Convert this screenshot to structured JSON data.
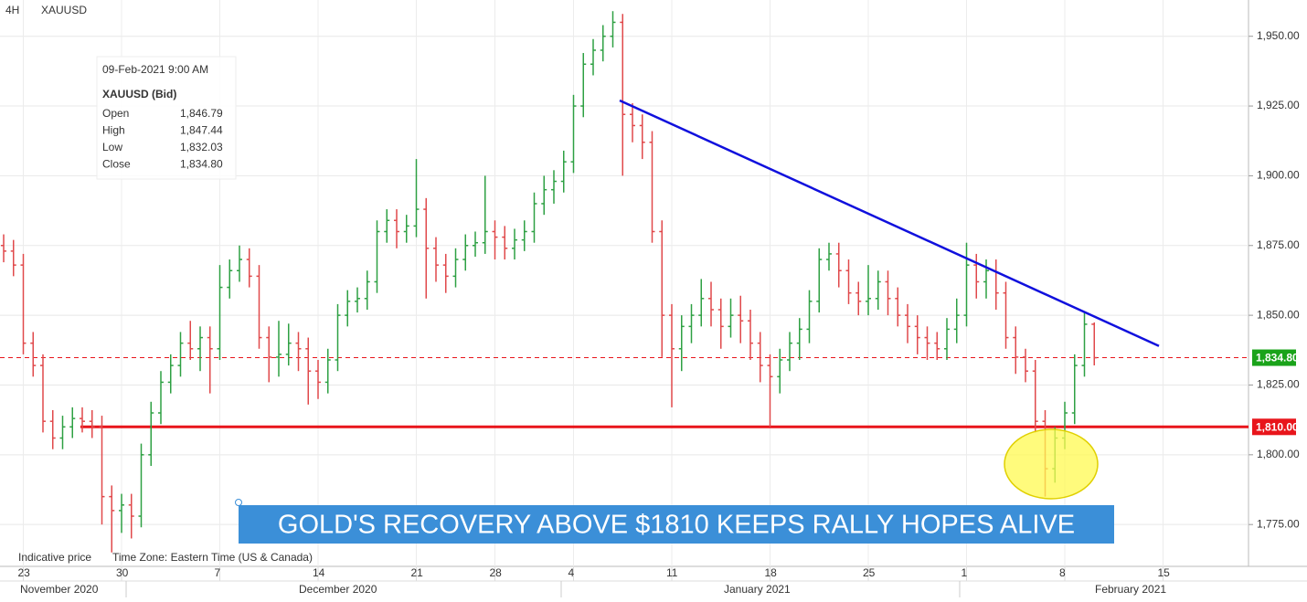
{
  "chart_data": {
    "type": "ohlc",
    "timeframe": "4H",
    "symbol": "XAUUSD",
    "up_color": "#2ea043",
    "down_color": "#e0494b",
    "categories": [
      null,
      null,
      "23",
      null,
      null,
      null,
      null,
      null,
      null,
      null,
      null,
      null,
      "30",
      null,
      null,
      null,
      null,
      null,
      null,
      null,
      null,
      null,
      "7",
      null,
      null,
      null,
      null,
      null,
      null,
      null,
      null,
      null,
      "14",
      null,
      null,
      null,
      null,
      null,
      null,
      null,
      null,
      null,
      "21",
      null,
      null,
      null,
      null,
      null,
      null,
      null,
      "28",
      null,
      null,
      null,
      null,
      null,
      null,
      null,
      "4",
      null,
      null,
      null,
      null,
      null,
      null,
      null,
      null,
      null,
      "11",
      null,
      null,
      null,
      null,
      null,
      null,
      null,
      null,
      null,
      "18",
      null,
      null,
      null,
      null,
      null,
      null,
      null,
      null,
      null,
      "25",
      null,
      null,
      null,
      null,
      null,
      null,
      null,
      null,
      null,
      "1",
      null,
      null,
      null,
      null,
      null,
      null,
      null,
      null,
      null,
      "8",
      null,
      null,
      null,
      null,
      null,
      null,
      null,
      null,
      null,
      "15"
    ],
    "open": [
      1875,
      1873,
      1868,
      1840,
      1832,
      1812,
      1806,
      1810,
      1813,
      1812,
      1810,
      1785,
      1780,
      1782,
      1778,
      1800,
      1815,
      1826,
      1832,
      1840,
      1838,
      1842,
      1838,
      1860,
      1866,
      1870,
      1864,
      1842,
      1835,
      1836,
      1840,
      1838,
      1830,
      1826,
      1834,
      1850,
      1855,
      1856,
      1862,
      1880,
      1884,
      1880,
      1882,
      1888,
      1874,
      1868,
      1864,
      1870,
      1875,
      1876,
      1880,
      1878,
      1874,
      1877,
      1880,
      1890,
      1895,
      1898,
      1905,
      1925,
      1940,
      1945,
      1950,
      1955,
      1922,
      1918,
      1912,
      1880,
      1850,
      1838,
      1846,
      1850,
      1856,
      1852,
      1846,
      1850,
      1848,
      1840,
      1832,
      1828,
      1834,
      1840,
      1845,
      1855,
      1870,
      1872,
      1866,
      1858,
      1855,
      1856,
      1862,
      1856,
      1850,
      1846,
      1842,
      1840,
      1838,
      1845,
      1850,
      1868,
      1862,
      1866,
      1858,
      1842,
      1835,
      1830,
      1812,
      1795,
      1806,
      1815,
      1832,
      1846.79,
      null,
      null,
      null,
      null,
      null,
      null,
      null
    ],
    "high": [
      1879,
      1877,
      1872,
      1844,
      1836,
      1816,
      1814,
      1817,
      1817,
      1816,
      1814,
      1789,
      1786,
      1786,
      1804,
      1819,
      1830,
      1836,
      1844,
      1848,
      1846,
      1846,
      1868,
      1870,
      1875,
      1874,
      1868,
      1846,
      1848,
      1847,
      1844,
      1842,
      1834,
      1838,
      1854,
      1859,
      1860,
      1866,
      1884,
      1888,
      1888,
      1886,
      1906,
      1892,
      1878,
      1872,
      1874,
      1879,
      1880,
      1900,
      1884,
      1882,
      1881,
      1884,
      1894,
      1900,
      1902,
      1909,
      1929,
      1944,
      1949,
      1954,
      1959,
      1958,
      1926,
      1922,
      1916,
      1884,
      1854,
      1850,
      1854,
      1863,
      1862,
      1856,
      1856,
      1857,
      1852,
      1844,
      1836,
      1838,
      1844,
      1849,
      1859,
      1874,
      1876,
      1876,
      1870,
      1862,
      1868,
      1866,
      1866,
      1860,
      1854,
      1850,
      1846,
      1844,
      1849,
      1856,
      1876,
      1872,
      1870,
      1870,
      1862,
      1846,
      1838,
      1834,
      1816,
      1810,
      1819,
      1836,
      1851,
      1847.44,
      null,
      null,
      null,
      null,
      null,
      null,
      null
    ],
    "low": [
      1869,
      1864,
      1836,
      1828,
      1808,
      1802,
      1802,
      1806,
      1808,
      1806,
      1775,
      1765,
      1772,
      1770,
      1774,
      1796,
      1811,
      1822,
      1828,
      1834,
      1830,
      1822,
      1834,
      1856,
      1862,
      1860,
      1838,
      1826,
      1828,
      1832,
      1830,
      1818,
      1820,
      1822,
      1830,
      1846,
      1851,
      1852,
      1858,
      1876,
      1874,
      1876,
      1878,
      1856,
      1862,
      1858,
      1860,
      1866,
      1871,
      1872,
      1870,
      1870,
      1870,
      1873,
      1876,
      1886,
      1890,
      1894,
      1901,
      1921,
      1936,
      1941,
      1946,
      1900,
      1912,
      1906,
      1876,
      1835,
      1817,
      1830,
      1840,
      1846,
      1846,
      1838,
      1842,
      1840,
      1834,
      1826,
      1810,
      1822,
      1830,
      1834,
      1840,
      1851,
      1866,
      1860,
      1854,
      1850,
      1850,
      1852,
      1850,
      1846,
      1840,
      1836,
      1834,
      1834,
      1834,
      1840,
      1846,
      1856,
      1856,
      1852,
      1838,
      1829,
      1826,
      1808,
      1785,
      1790,
      1802,
      1811,
      1828,
      1832.03,
      null,
      null,
      null,
      null,
      null,
      null,
      null
    ],
    "close": [
      1873,
      1868,
      1840,
      1832,
      1812,
      1806,
      1810,
      1813,
      1812,
      1810,
      1785,
      1780,
      1782,
      1778,
      1800,
      1815,
      1826,
      1832,
      1840,
      1838,
      1842,
      1838,
      1860,
      1866,
      1870,
      1864,
      1842,
      1835,
      1836,
      1840,
      1838,
      1830,
      1826,
      1834,
      1850,
      1855,
      1856,
      1862,
      1880,
      1884,
      1880,
      1882,
      1888,
      1874,
      1868,
      1864,
      1870,
      1875,
      1876,
      1880,
      1878,
      1874,
      1877,
      1880,
      1890,
      1895,
      1898,
      1905,
      1925,
      1940,
      1945,
      1950,
      1955,
      1922,
      1918,
      1912,
      1880,
      1850,
      1838,
      1846,
      1850,
      1856,
      1852,
      1846,
      1850,
      1848,
      1840,
      1832,
      1828,
      1834,
      1840,
      1845,
      1855,
      1870,
      1872,
      1866,
      1858,
      1855,
      1856,
      1862,
      1856,
      1850,
      1846,
      1842,
      1840,
      1838,
      1845,
      1850,
      1868,
      1862,
      1866,
      1858,
      1842,
      1835,
      1830,
      1812,
      1795,
      1806,
      1815,
      1832,
      1846.79,
      1834.8,
      null,
      null,
      null,
      null,
      null,
      null,
      null
    ],
    "ylim": [
      1760,
      1963
    ],
    "yticks": [
      {
        "value": 1775,
        "label": "1,775.00"
      },
      {
        "value": 1800,
        "label": "1,800.00"
      },
      {
        "value": 1825,
        "label": "1,825.00"
      },
      {
        "value": 1850,
        "label": "1,850.00"
      },
      {
        "value": 1875,
        "label": "1,875.00"
      },
      {
        "value": 1900,
        "label": "1,900.00"
      },
      {
        "value": 1925,
        "label": "1,925.00"
      },
      {
        "value": 1950,
        "label": "1,950.00"
      }
    ],
    "month_labels": [
      "November 2020",
      "December 2020",
      "January 2021",
      "February 2021"
    ],
    "last_price": {
      "value": 1834.8,
      "label": "1,834.80",
      "color": "#1aa31a"
    },
    "support": {
      "value": 1810,
      "label": "1,810.00",
      "color": "#e8151b"
    },
    "trendline": {
      "values": [
        1927,
        1839
      ],
      "color": "#1010dd"
    },
    "tooltip": {
      "date": "09-Feb-2021 9:00 AM",
      "heading": "XAUUSD (Bid)",
      "rows": [
        {
          "label": "Open",
          "value": 1846.79,
          "value_label": "1,846.79"
        },
        {
          "label": "High",
          "value": 1847.44,
          "value_label": "1,847.44"
        },
        {
          "label": "Low",
          "value": 1832.03,
          "value_label": "1,832.03"
        },
        {
          "label": "Close",
          "value": 1834.8,
          "value_label": "1,834.80"
        }
      ]
    },
    "banner": "GOLD'S RECOVERY ABOVE $1810 KEEPS RALLY HOPES ALIVE",
    "footer": [
      "Indicative price",
      "Time Zone: Eastern Time (US & Canada)"
    ]
  }
}
